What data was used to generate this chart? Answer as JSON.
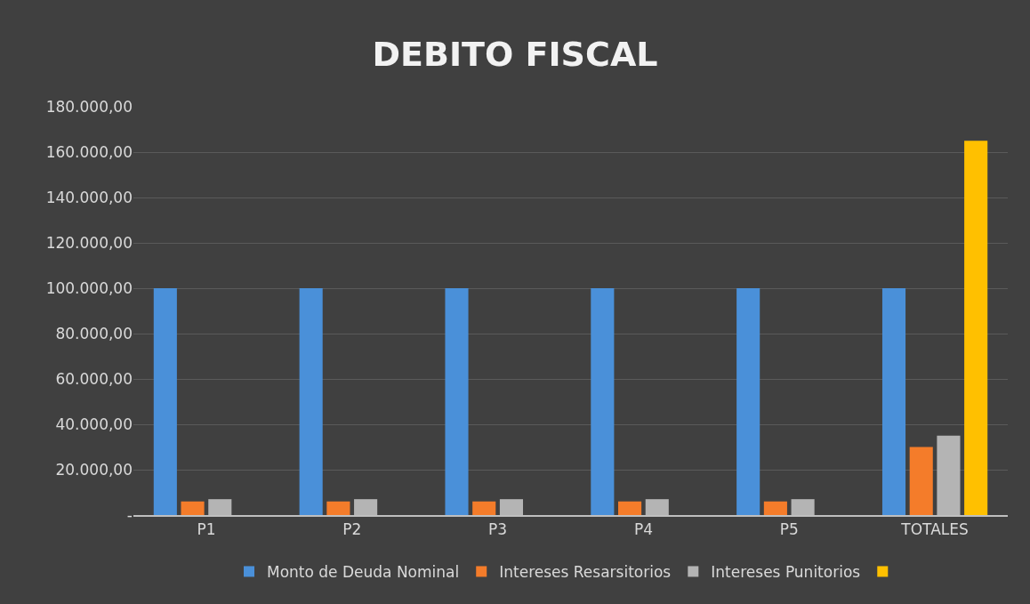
{
  "chart_data": {
    "type": "bar",
    "title": "DEBITO FISCAL",
    "categories": [
      "P1",
      "P2",
      "P3",
      "P4",
      "P5",
      "TOTALES"
    ],
    "series": [
      {
        "name": "Monto de Deuda Nominal",
        "color": "#4a90d9",
        "values": [
          100000,
          100000,
          100000,
          100000,
          100000,
          100000
        ]
      },
      {
        "name": "Intereses Resarsitorios",
        "color": "#f47c2a",
        "values": [
          6000,
          6000,
          6000,
          6000,
          6000,
          30000
        ]
      },
      {
        "name": "Intereses Punitorios",
        "color": "#b4b4b4",
        "values": [
          7000,
          7000,
          7000,
          7000,
          7000,
          35000
        ]
      },
      {
        "color": "#ffc000",
        "values": [
          null,
          null,
          null,
          null,
          null,
          165000
        ]
      }
    ],
    "ylim": [
      0,
      180000
    ],
    "yticks": [
      {
        "value": 0,
        "label": "-"
      },
      {
        "value": 20000,
        "label": "20.000,00"
      },
      {
        "value": 40000,
        "label": "40.000,00"
      },
      {
        "value": 60000,
        "label": "60.000,00"
      },
      {
        "value": 80000,
        "label": "80.000,00"
      },
      {
        "value": 100000,
        "label": "100.000,00"
      },
      {
        "value": 120000,
        "label": "120.000,00"
      },
      {
        "value": 140000,
        "label": "140.000,00"
      },
      {
        "value": 160000,
        "label": "160.000,00"
      },
      {
        "value": 180000,
        "label": "180.000,00"
      }
    ],
    "grid": "y",
    "legend": "bottom"
  }
}
